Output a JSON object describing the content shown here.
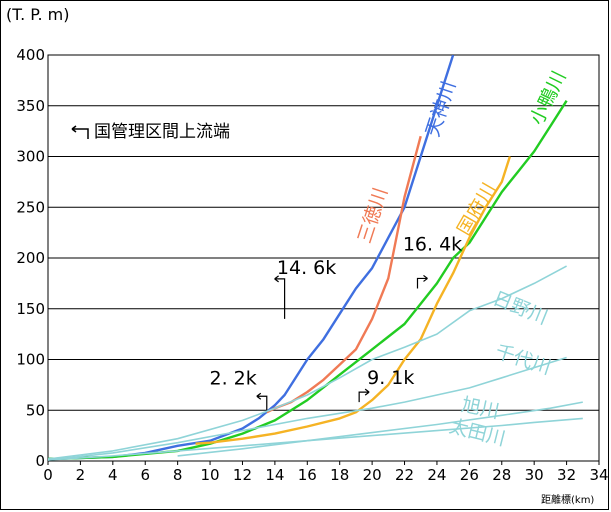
{
  "chart_data": {
    "type": "line",
    "ylabel": "(T. P. m)",
    "xlabel": "距離標(km)",
    "xlim": [
      0,
      34
    ],
    "ylim": [
      0,
      400
    ],
    "x_ticks": [
      "0",
      "2",
      "4",
      "6",
      "8",
      "10",
      "12",
      "14",
      "16",
      "18",
      "20",
      "22",
      "24",
      "26",
      "28",
      "30",
      "32",
      "34"
    ],
    "y_ticks": [
      "0",
      "50",
      "100",
      "150",
      "200",
      "250",
      "300",
      "350",
      "400"
    ],
    "grid": "horizontal",
    "legend_note": "国管理区間上流端",
    "series": [
      {
        "name": "天神川",
        "color": "#3f6fe0",
        "points": [
          [
            0,
            2
          ],
          [
            4,
            4
          ],
          [
            6,
            8
          ],
          [
            8,
            15
          ],
          [
            10,
            20
          ],
          [
            12,
            32
          ],
          [
            13,
            42
          ],
          [
            14,
            55
          ],
          [
            14.6,
            65
          ],
          [
            15,
            75
          ],
          [
            16,
            100
          ],
          [
            17,
            120
          ],
          [
            18,
            145
          ],
          [
            19,
            170
          ],
          [
            20,
            190
          ],
          [
            21,
            220
          ],
          [
            22,
            250
          ],
          [
            23,
            300
          ],
          [
            24,
            350
          ],
          [
            25,
            400
          ]
        ]
      },
      {
        "name": "三徳川",
        "color": "#f07a55",
        "points": [
          [
            13.5,
            48
          ],
          [
            14,
            52
          ],
          [
            15,
            58
          ],
          [
            16,
            68
          ],
          [
            17,
            80
          ],
          [
            18,
            95
          ],
          [
            19,
            110
          ],
          [
            20,
            140
          ],
          [
            21,
            180
          ],
          [
            21.5,
            220
          ],
          [
            22,
            260
          ],
          [
            22.5,
            290
          ],
          [
            23,
            320
          ]
        ]
      },
      {
        "name": "小鴨川",
        "color": "#22cc22",
        "points": [
          [
            0,
            2
          ],
          [
            4,
            4
          ],
          [
            8,
            10
          ],
          [
            10,
            17
          ],
          [
            12,
            27
          ],
          [
            14,
            40
          ],
          [
            16,
            60
          ],
          [
            18,
            85
          ],
          [
            20,
            110
          ],
          [
            22,
            135
          ],
          [
            23,
            155
          ],
          [
            24,
            175
          ],
          [
            25,
            200
          ],
          [
            26,
            215
          ],
          [
            27,
            240
          ],
          [
            28,
            265
          ],
          [
            29,
            285
          ],
          [
            30,
            305
          ],
          [
            31,
            330
          ],
          [
            32,
            355
          ]
        ]
      },
      {
        "name": "国府川",
        "color": "#f5b324",
        "points": [
          [
            9.1,
            17
          ],
          [
            10,
            18
          ],
          [
            12,
            22
          ],
          [
            14,
            27
          ],
          [
            16,
            34
          ],
          [
            18,
            42
          ],
          [
            19,
            48
          ],
          [
            20,
            60
          ],
          [
            21,
            75
          ],
          [
            22,
            100
          ],
          [
            23,
            120
          ],
          [
            24,
            155
          ],
          [
            25,
            185
          ],
          [
            26,
            220
          ],
          [
            27,
            250
          ],
          [
            28,
            275
          ],
          [
            28.5,
            300
          ]
        ]
      },
      {
        "name": "日野川",
        "color": "#8fd4d8",
        "points": [
          [
            0,
            2
          ],
          [
            4,
            10
          ],
          [
            8,
            22
          ],
          [
            12,
            40
          ],
          [
            14,
            52
          ],
          [
            16,
            65
          ],
          [
            18,
            82
          ],
          [
            20,
            100
          ],
          [
            22,
            112
          ],
          [
            24,
            125
          ],
          [
            26,
            148
          ],
          [
            28,
            160
          ],
          [
            30,
            175
          ],
          [
            32,
            192
          ]
        ]
      },
      {
        "name": "千代川",
        "color": "#8fd4d8",
        "points": [
          [
            0,
            1
          ],
          [
            4,
            8
          ],
          [
            8,
            18
          ],
          [
            12,
            30
          ],
          [
            16,
            42
          ],
          [
            20,
            52
          ],
          [
            22,
            58
          ],
          [
            24,
            65
          ],
          [
            26,
            72
          ],
          [
            28,
            82
          ],
          [
            30,
            92
          ],
          [
            32,
            102
          ]
        ]
      },
      {
        "name": "旭川",
        "color": "#8fd4d8",
        "points": [
          [
            8,
            5
          ],
          [
            12,
            12
          ],
          [
            16,
            20
          ],
          [
            20,
            28
          ],
          [
            24,
            36
          ],
          [
            28,
            45
          ],
          [
            31,
            52
          ],
          [
            33,
            58
          ]
        ]
      },
      {
        "name": "太田川",
        "color": "#8fd4d8",
        "points": [
          [
            0,
            1
          ],
          [
            4,
            5
          ],
          [
            8,
            10
          ],
          [
            12,
            15
          ],
          [
            16,
            20
          ],
          [
            20,
            25
          ],
          [
            24,
            30
          ],
          [
            28,
            35
          ],
          [
            30,
            38
          ],
          [
            33,
            42
          ]
        ]
      }
    ],
    "annotations": [
      {
        "text": "2. 2k",
        "x": 13.5,
        "y": 50
      },
      {
        "text": "14. 6k",
        "x": 14.6,
        "y": 140
      },
      {
        "text": "9. 1k",
        "x": 19.2,
        "y": 58
      },
      {
        "text": "16. 4k",
        "x": 22.8,
        "y": 170
      }
    ]
  }
}
